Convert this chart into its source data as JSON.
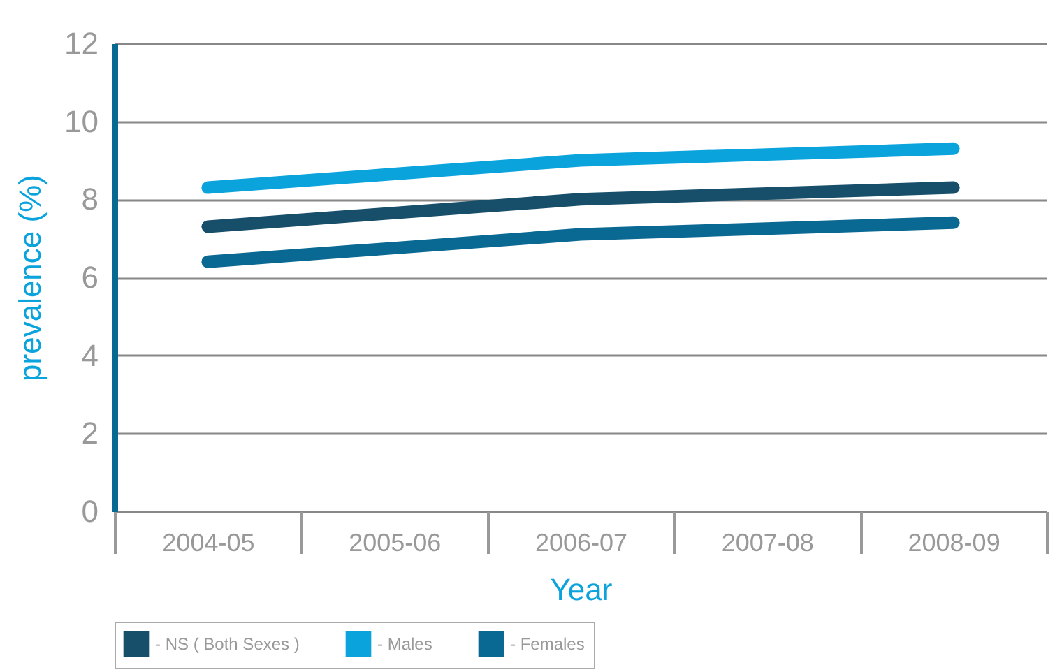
{
  "chart_data": {
    "type": "line",
    "xlabel": "Year",
    "ylabel": "prevalence (%)",
    "categories": [
      "2004-05",
      "2005-06",
      "2006-07",
      "2007-08",
      "2008-09"
    ],
    "series": [
      {
        "name": "- NS ( Both Sexes )",
        "color": "#174f6b",
        "values": [
          7.3,
          7.65,
          8.0,
          8.15,
          8.3
        ]
      },
      {
        "name": "- Males",
        "color": "#0aa3dc",
        "values": [
          8.3,
          8.65,
          9.0,
          9.15,
          9.3
        ]
      },
      {
        "name": "- Females",
        "color": "#0a6992",
        "values": [
          6.4,
          6.75,
          7.1,
          7.25,
          7.4
        ]
      }
    ],
    "ylim": [
      0,
      12
    ],
    "yticks": [
      0,
      2,
      4,
      6,
      8,
      10,
      12
    ],
    "grid": "y",
    "legend": "bottom",
    "marker": "none",
    "line_style": "solid"
  }
}
